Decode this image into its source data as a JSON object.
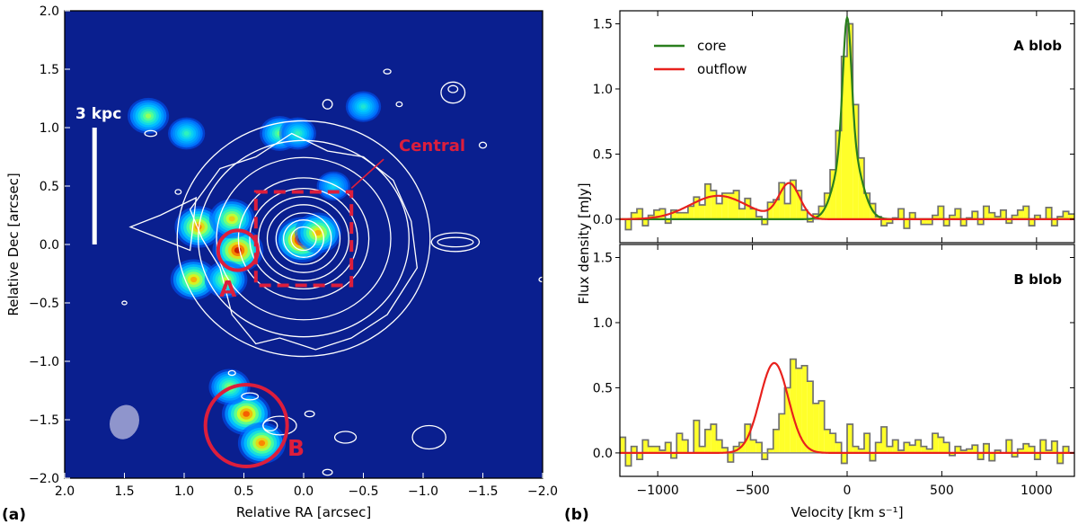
{
  "figure_labels": {
    "a": "(a)",
    "b": "(b)"
  },
  "chart_data": [
    {
      "type": "heatmap",
      "panel": "(a)",
      "xlabel": "Relative RA [arcsec]",
      "ylabel": "Relative Dec [arcsec]",
      "xlim": [
        2.0,
        -2.0
      ],
      "ylim": [
        -2.0,
        2.0
      ],
      "xticks": [
        "2.0",
        "1.5",
        "1.0",
        "0.5",
        "0.0",
        "−0.5",
        "−1.0",
        "−1.5",
        "−2.0"
      ],
      "yticks": [
        "2.0",
        "1.5",
        "1.0",
        "0.5",
        "0.0",
        "−0.5",
        "−1.0",
        "−1.5",
        "−2.0"
      ],
      "scale_bar": {
        "label": "3 kpc",
        "ra": 1.75,
        "dec_from": 0.0,
        "dec_to": 1.0
      },
      "central_box": {
        "label": "Central",
        "ra_from": 0.4,
        "ra_to": -0.4,
        "dec_from": -0.35,
        "dec_to": 0.45
      },
      "regions": [
        {
          "label": "A",
          "ra": 0.55,
          "dec": -0.05,
          "radius": 0.17
        },
        {
          "label": "B",
          "ra": 0.48,
          "dec": -1.55,
          "radius": 0.35
        }
      ],
      "beam": {
        "ra": 1.5,
        "dec": -1.52,
        "major": 0.3,
        "minor": 0.23
      },
      "emission_blobs": [
        {
          "ra": 0.02,
          "dec": 0.04,
          "peak": 1.0
        },
        {
          "ra": -0.12,
          "dec": 0.1,
          "peak": 0.75
        },
        {
          "ra": 0.55,
          "dec": -0.05,
          "peak": 0.95
        },
        {
          "ra": 0.88,
          "dec": 0.15,
          "peak": 0.8
        },
        {
          "ra": 0.6,
          "dec": 0.22,
          "peak": 0.7
        },
        {
          "ra": 0.92,
          "dec": -0.3,
          "peak": 0.75
        },
        {
          "ra": 0.65,
          "dec": -0.3,
          "peak": 0.6
        },
        {
          "ra": 0.48,
          "dec": -1.45,
          "peak": 0.85
        },
        {
          "ra": 0.35,
          "dec": -1.7,
          "peak": 0.8
        },
        {
          "ra": 0.62,
          "dec": -1.22,
          "peak": 0.55
        },
        {
          "ra": 1.3,
          "dec": 1.1,
          "peak": 0.55
        },
        {
          "ra": 0.2,
          "dec": 0.95,
          "peak": 0.5
        },
        {
          "ra": 0.05,
          "dec": 0.95,
          "peak": 0.4
        },
        {
          "ra": 0.98,
          "dec": 0.95,
          "peak": 0.4
        },
        {
          "ra": -0.5,
          "dec": 1.18,
          "peak": 0.35
        },
        {
          "ra": -0.25,
          "dec": 0.5,
          "peak": 0.3
        }
      ],
      "contour_peak": {
        "ra": 0.0,
        "dec": 0.05
      },
      "contour_ring_radii": [
        0.1,
        0.16,
        0.22,
        0.29,
        0.36,
        0.43,
        0.52,
        0.62,
        0.75,
        0.9
      ],
      "contour_islands": [
        {
          "ra": -1.27,
          "dec": 0.02,
          "w": 0.3,
          "h": 0.08
        },
        {
          "ra": -1.27,
          "dec": 0.02,
          "w": 0.4,
          "h": 0.16
        },
        {
          "ra": -1.25,
          "dec": 1.33,
          "w": 0.08,
          "h": 0.06
        },
        {
          "ra": -1.25,
          "dec": 1.3,
          "w": 0.2,
          "h": 0.18
        },
        {
          "ra": -0.2,
          "dec": 1.2,
          "w": 0.08,
          "h": 0.08
        },
        {
          "ra": -0.8,
          "dec": 1.2,
          "w": 0.05,
          "h": 0.04
        },
        {
          "ra": -1.5,
          "dec": 0.85,
          "w": 0.06,
          "h": 0.05
        },
        {
          "ra": -0.7,
          "dec": 1.48,
          "w": 0.06,
          "h": 0.04
        },
        {
          "ra": 1.28,
          "dec": 0.95,
          "w": 0.1,
          "h": 0.05
        },
        {
          "ra": 1.05,
          "dec": 0.45,
          "w": 0.05,
          "h": 0.04
        },
        {
          "ra": 0.45,
          "dec": -1.3,
          "w": 0.14,
          "h": 0.06
        },
        {
          "ra": 0.28,
          "dec": -1.55,
          "w": 0.12,
          "h": 0.09
        },
        {
          "ra": 0.2,
          "dec": -1.55,
          "w": 0.28,
          "h": 0.16
        },
        {
          "ra": -0.35,
          "dec": -1.65,
          "w": 0.18,
          "h": 0.1
        },
        {
          "ra": -0.05,
          "dec": -1.45,
          "w": 0.08,
          "h": 0.05
        },
        {
          "ra": -1.05,
          "dec": -1.65,
          "w": 0.28,
          "h": 0.2
        },
        {
          "ra": -0.2,
          "dec": -1.95,
          "w": 0.08,
          "h": 0.05
        },
        {
          "ra": 1.5,
          "dec": -0.5,
          "w": 0.04,
          "h": 0.03
        },
        {
          "ra": -2.0,
          "dec": -0.3,
          "w": 0.06,
          "h": 0.04
        },
        {
          "ra": 0.6,
          "dec": -1.1,
          "w": 0.06,
          "h": 0.04
        }
      ]
    },
    {
      "type": "histogram",
      "panel": "(b)",
      "title": "A blob",
      "xlim": [
        -1200,
        1200
      ],
      "ylim": [
        -0.18,
        1.6
      ],
      "yticks": [
        0.0,
        0.5,
        1.0,
        1.5
      ],
      "xticks": [
        -1000,
        -500,
        0,
        500,
        1000
      ],
      "bin_width": 30,
      "bin_start": -1200,
      "flux": [
        0.0,
        -0.08,
        0.05,
        0.08,
        -0.05,
        0.03,
        0.07,
        0.08,
        -0.03,
        0.07,
        0.05,
        0.05,
        0.1,
        0.17,
        0.11,
        0.27,
        0.22,
        0.12,
        0.2,
        0.2,
        0.22,
        0.08,
        0.16,
        0.08,
        0.02,
        -0.04,
        0.13,
        0.15,
        0.28,
        0.12,
        0.3,
        0.22,
        0.07,
        -0.02,
        0.04,
        0.1,
        0.2,
        0.38,
        0.68,
        1.25,
        1.5,
        0.88,
        0.47,
        0.2,
        0.12,
        0.02,
        -0.05,
        -0.03,
        0.01,
        0.08,
        -0.07,
        0.05,
        0.0,
        -0.04,
        -0.04,
        0.03,
        0.1,
        -0.05,
        0.03,
        0.08,
        -0.05,
        0.01,
        0.06,
        -0.04,
        0.1,
        0.05,
        0.02,
        0.07,
        -0.03,
        0.03,
        0.07,
        0.1,
        -0.05,
        0.03,
        0.0,
        0.09,
        -0.05,
        0.02,
        0.06,
        0.04
      ],
      "series": [
        {
          "name": "core",
          "color": "#2a7f1e",
          "components": [
            {
              "kind": "gauss",
              "amp": 0.95,
              "mu": 0,
              "sigma": 22
            },
            {
              "kind": "gauss",
              "amp": 0.6,
              "mu": 5,
              "sigma": 62
            }
          ]
        },
        {
          "name": "outflow",
          "color": "#e8211d",
          "components": [
            {
              "kind": "gauss",
              "amp": 0.18,
              "mu": -680,
              "sigma": 150
            },
            {
              "kind": "gauss",
              "amp": 0.27,
              "mu": -305,
              "sigma": 55
            }
          ]
        }
      ],
      "legend": [
        {
          "label": "core",
          "color": "#2a7f1e"
        },
        {
          "label": "outflow",
          "color": "#e8211d"
        }
      ],
      "ylabel": "Flux density [mJy]"
    },
    {
      "type": "histogram",
      "panel": "(b)",
      "title": "B blob",
      "xlim": [
        -1200,
        1200
      ],
      "ylim": [
        -0.18,
        1.6
      ],
      "yticks": [
        0.0,
        0.5,
        1.0,
        1.5
      ],
      "xticks": [
        -1000,
        -500,
        0,
        500,
        1000
      ],
      "xticklabels": [
        "−1000",
        "−500",
        "0",
        "500",
        "1000"
      ],
      "bin_width": 30,
      "bin_start": -1200,
      "flux": [
        0.12,
        -0.1,
        0.05,
        -0.05,
        0.1,
        0.05,
        0.05,
        0.02,
        0.08,
        -0.04,
        0.15,
        0.1,
        0.0,
        0.25,
        0.05,
        0.18,
        0.22,
        0.1,
        0.04,
        -0.07,
        0.05,
        0.08,
        0.22,
        0.1,
        0.08,
        -0.05,
        0.03,
        0.18,
        0.3,
        0.5,
        0.72,
        0.65,
        0.67,
        0.55,
        0.38,
        0.4,
        0.18,
        0.15,
        0.08,
        -0.08,
        0.22,
        0.05,
        0.03,
        0.15,
        -0.06,
        0.08,
        0.2,
        0.05,
        0.1,
        0.02,
        0.08,
        0.06,
        0.1,
        0.05,
        0.03,
        0.15,
        0.12,
        0.08,
        -0.02,
        0.05,
        0.02,
        0.03,
        0.06,
        -0.05,
        0.07,
        -0.06,
        0.02,
        0.0,
        0.1,
        -0.03,
        0.03,
        0.07,
        0.05,
        -0.05,
        0.1,
        0.02,
        0.09,
        -0.08,
        0.05,
        0.0
      ],
      "series": [
        {
          "name": "outflow",
          "color": "#e8211d",
          "components": [
            {
              "kind": "gauss",
              "amp": 0.69,
              "mu": -385,
              "sigma": 75
            }
          ]
        }
      ],
      "xlabel": "Velocity [km s⁻¹]"
    }
  ]
}
